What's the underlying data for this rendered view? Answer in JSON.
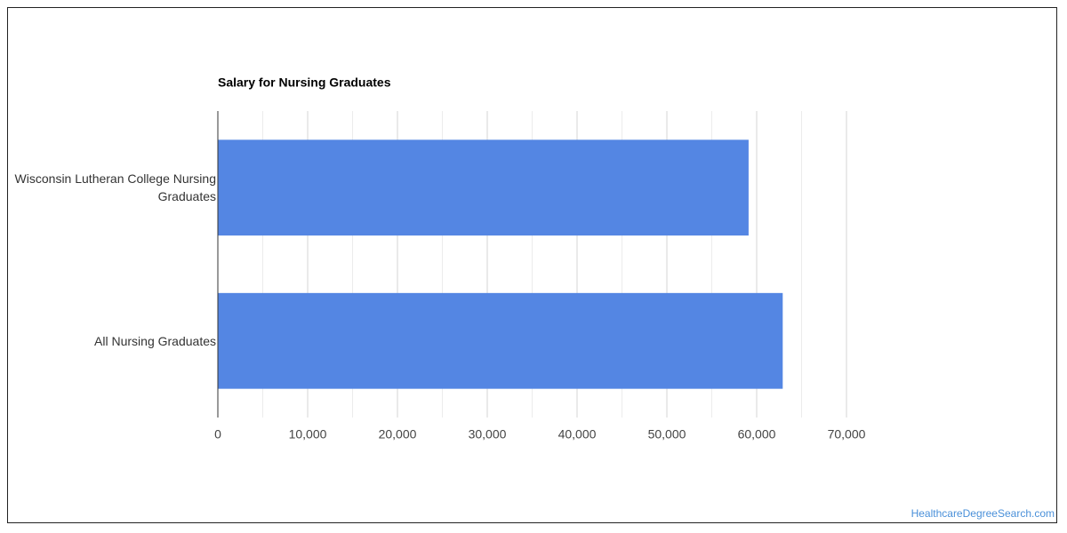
{
  "chart_data": {
    "type": "bar",
    "orientation": "horizontal",
    "title": "Salary for Nursing Graduates",
    "categories": [
      "Wisconsin Lutheran College Nursing Graduates",
      "All Nursing Graduates"
    ],
    "values": [
      59100,
      62900
    ],
    "color": "#5486e3",
    "xlim": [
      0,
      70000
    ],
    "xticks": [
      0,
      {
        "value": 10000,
        "label": "10,000"
      },
      {
        "value": 20000,
        "label": "20,000"
      },
      {
        "value": 30000,
        "label": "30,000"
      },
      {
        "value": 40000,
        "label": "40,000"
      },
      {
        "value": 50000,
        "label": "50,000"
      },
      {
        "value": 60000,
        "label": "60,000"
      },
      {
        "value": 70000,
        "label": "70,000"
      }
    ],
    "xminorticks": [
      5000,
      15000,
      25000,
      35000,
      45000,
      55000,
      65000
    ],
    "grid": true,
    "source": "HealthcareDegreeSearch.com"
  }
}
